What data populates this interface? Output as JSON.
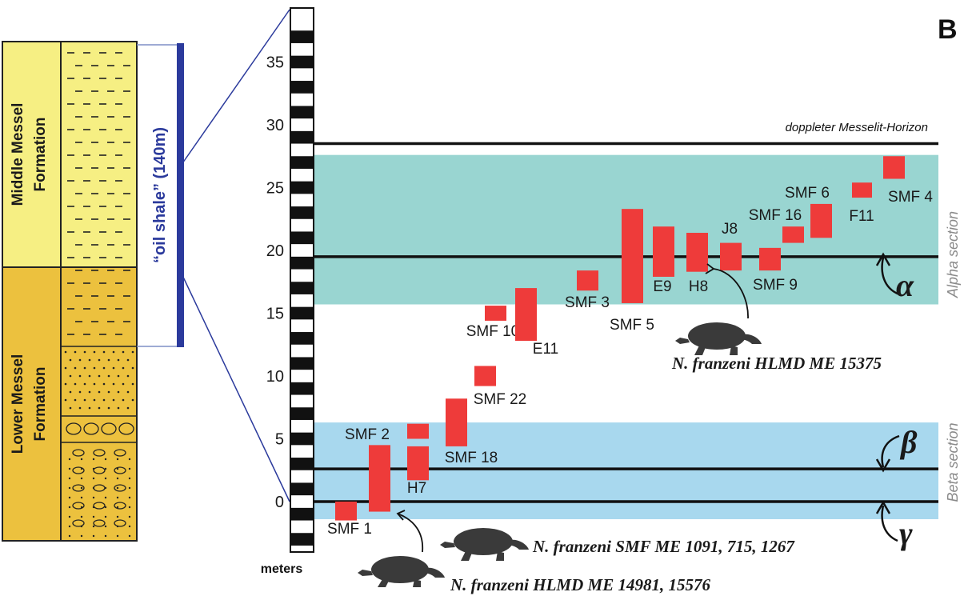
{
  "panel_label": "B",
  "colors": {
    "alpha_band": "#99d5d1",
    "beta_band": "#a8d8ee",
    "sample": "#ee3b3a",
    "middle_formation": "#f6ef83",
    "lower_formation": "#ecc13e",
    "oil_shale_bar": "#2b3a9c"
  },
  "stratigraphy": {
    "middle": {
      "line1": "Middle Messel",
      "line2": "Formation"
    },
    "lower": {
      "line1": "Lower Messel",
      "line2": "Formation"
    },
    "oil_shale": "“oil shale” (140m)"
  },
  "scale": {
    "unit_label": "meters",
    "ticks": [
      "35",
      "30",
      "25",
      "20",
      "15",
      "10",
      "5",
      "0"
    ]
  },
  "horizons": {
    "messelit": "doppleter Messelit-Horizon",
    "alpha": "α",
    "beta": "β",
    "gamma": "γ"
  },
  "sections": {
    "alpha": "Alpha section",
    "beta": "Beta section"
  },
  "chart_data": {
    "type": "range-bar",
    "y_unit": "meters",
    "ylim": [
      -1.5,
      37
    ],
    "bands": [
      {
        "name": "Alpha section",
        "from": 15.7,
        "to": 27.6
      },
      {
        "name": "Beta section",
        "from": -1.4,
        "to": 6.3
      }
    ],
    "horizon_levels": [
      {
        "name": "doppleter Messelit-Horizon",
        "y": 28.5
      },
      {
        "name": "α",
        "y": 19.5
      },
      {
        "name": "β",
        "y": 2.6
      },
      {
        "name": "γ",
        "y": 0
      }
    ],
    "samples": [
      {
        "label": "SMF 1",
        "from": -1.5,
        "to": 0
      },
      {
        "label": "SMF 2",
        "from": -0.8,
        "to": 4.5
      },
      {
        "label": "",
        "from": 5,
        "to": 6.2
      },
      {
        "label": "H7",
        "from": 1.7,
        "to": 4.4
      },
      {
        "label": "SMF 18",
        "from": 4.4,
        "to": 8.2
      },
      {
        "label": "SMF 22",
        "from": 9.2,
        "to": 10.8
      },
      {
        "label": "SMF 10",
        "from": 14.4,
        "to": 15.6
      },
      {
        "label": "E11",
        "from": 12.8,
        "to": 17
      },
      {
        "label": "SMF 3",
        "from": 16.8,
        "to": 18.4
      },
      {
        "label": "SMF 5",
        "from": 15.8,
        "to": 23.3
      },
      {
        "label": "E9",
        "from": 17.9,
        "to": 21.9
      },
      {
        "label": "H8",
        "from": 18.3,
        "to": 21.4
      },
      {
        "label": "J8",
        "from": 18.4,
        "to": 20.6
      },
      {
        "label": "SMF 9",
        "from": 18.4,
        "to": 20.2
      },
      {
        "label": "SMF 16",
        "from": 20.6,
        "to": 21.9
      },
      {
        "label": "SMF 6",
        "from": 21,
        "to": 23.7
      },
      {
        "label": "F11",
        "from": 24.2,
        "to": 25.4
      },
      {
        "label": "SMF 4",
        "from": 25.7,
        "to": 27.5
      }
    ]
  },
  "specimens": [
    {
      "text": "N. franzeni HLMD ME 15375"
    },
    {
      "text": "N. franzeni SMF ME 1091, 715, 1267"
    },
    {
      "text": "N. franzeni HLMD ME 14981, 15576"
    }
  ]
}
